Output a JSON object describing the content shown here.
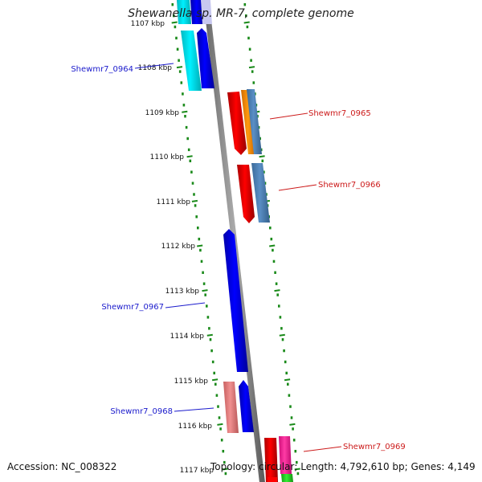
{
  "title": "Shewanella sp. MR-7, complete genome",
  "footer": {
    "accession": "Accession: NC_008322",
    "topology": "Topology: circular; Length: 4,792,610 bp; Genes: 4,149"
  },
  "ticks": [
    {
      "label": "1107 kbp",
      "value_kbp": 1107
    },
    {
      "label": "1108 kbp",
      "value_kbp": 1108
    },
    {
      "label": "1109 kbp",
      "value_kbp": 1109
    },
    {
      "label": "1110 kbp",
      "value_kbp": 1110
    },
    {
      "label": "1111 kbp",
      "value_kbp": 1111
    },
    {
      "label": "1112 kbp",
      "value_kbp": 1112
    },
    {
      "label": "1113 kbp",
      "value_kbp": 1113
    },
    {
      "label": "1114 kbp",
      "value_kbp": 1114
    },
    {
      "label": "1115 kbp",
      "value_kbp": 1115
    },
    {
      "label": "1116 kbp",
      "value_kbp": 1116
    },
    {
      "label": "1117 kbp",
      "value_kbp": 1117
    }
  ],
  "genes": [
    {
      "name": "Shewmr7_0964",
      "strand": "reverse",
      "color": "#1a1acc"
    },
    {
      "name": "Shewmr7_0965",
      "strand": "forward",
      "color": "#cc1a1a"
    },
    {
      "name": "Shewmr7_0966",
      "strand": "forward",
      "color": "#cc1a1a"
    },
    {
      "name": "Shewmr7_0967",
      "strand": "reverse",
      "color": "#1a1acc"
    },
    {
      "name": "Shewmr7_0968",
      "strand": "reverse",
      "color": "#1a1acc"
    },
    {
      "name": "Shewmr7_0969",
      "strand": "forward",
      "color": "#cc1a1a"
    }
  ],
  "feature_colors": {
    "cds_reverse": "#0000ee",
    "cds_forward": "#ee0000",
    "cyan": "#00e5ee",
    "orange": "#ff8c00",
    "steelblue": "#4a7fb5",
    "lightcoral": "#f08080",
    "deeppink": "#ff1493",
    "green": "#22cc22",
    "backbone": "#888888",
    "dots": "#1a8a1a"
  }
}
